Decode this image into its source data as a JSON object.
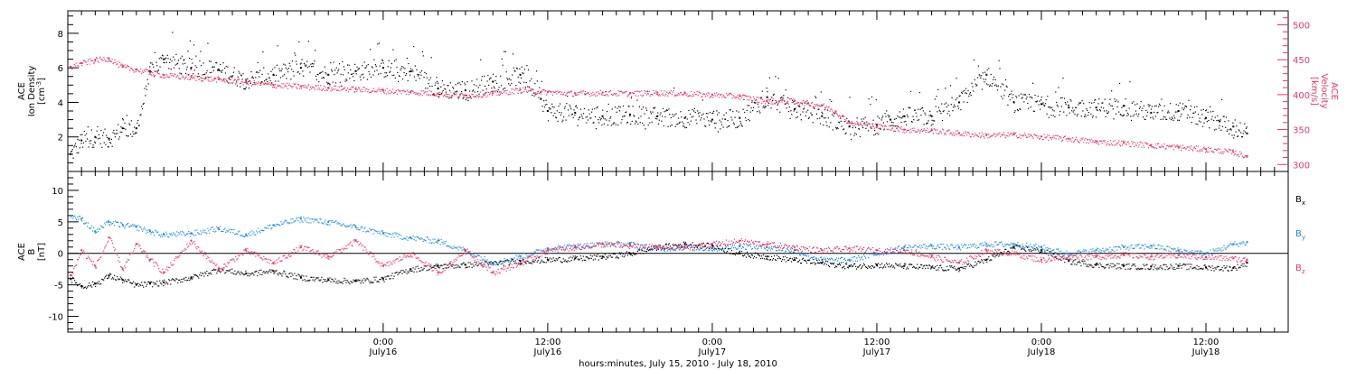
{
  "chart_data": [
    {
      "type": "scatter",
      "title": "",
      "xlabel": "hours:minutes, July 15, 2010 - July 18, 2010",
      "ylabel": "ACE\nIon Density\n[cm⁻³]",
      "ylabel_lines": [
        "ACE",
        "Ion Density",
        "[cm",
        "-3",
        "]"
      ],
      "y2label_lines": [
        "ACE",
        "Velocity",
        "[km/s]"
      ],
      "x_unit": "hours since 2010-07-15 00:00",
      "xlim": [
        1.0,
        90.0
      ],
      "ylim": [
        0,
        9.3
      ],
      "y2lim": [
        290,
        520
      ],
      "yticks": [
        2,
        4,
        6,
        8
      ],
      "y2ticks": [
        300,
        350,
        400,
        450,
        500
      ],
      "series": [
        {
          "name": "Ion Density",
          "color": "#000000",
          "axis": "left",
          "x": [
            1.2,
            2.0,
            3.0,
            4.0,
            5.0,
            6.0,
            7.0,
            8.0,
            10.0,
            12.0,
            14.0,
            16.0,
            18.0,
            20.0,
            22.0,
            24.0,
            26.0,
            28.0,
            30.0,
            32.0,
            34.0,
            35.5,
            36.0,
            38.0,
            40.0,
            42.0,
            44.0,
            46.0,
            48.0,
            50.0,
            52.0,
            54.0,
            56.0,
            58.0,
            60.0,
            61.0,
            62.0,
            64.0,
            66.0,
            68.0,
            70.0,
            72.0,
            74.0,
            76.0,
            78.0,
            80.0,
            82.0,
            84.0,
            85.0,
            86.0,
            87.0
          ],
          "y": [
            1.0,
            1.8,
            2.0,
            1.9,
            2.5,
            2.5,
            5.8,
            6.5,
            6.0,
            5.9,
            5.3,
            5.6,
            6.0,
            5.6,
            5.8,
            6.0,
            5.8,
            4.8,
            4.7,
            5.2,
            5.6,
            4.2,
            3.5,
            3.4,
            3.2,
            3.3,
            3.2,
            3.1,
            3.0,
            3.1,
            4.3,
            3.6,
            3.2,
            2.6,
            2.7,
            3.0,
            3.2,
            3.2,
            4.0,
            5.6,
            4.0,
            3.9,
            3.7,
            3.7,
            3.8,
            3.4,
            3.5,
            3.1,
            2.9,
            2.6,
            2.2
          ]
        },
        {
          "name": "Velocity",
          "color": "#e8375f",
          "axis": "right",
          "x": [
            1.2,
            2.0,
            3.0,
            4.0,
            5.0,
            6.0,
            7.0,
            8.0,
            10.0,
            12.0,
            14.0,
            16.0,
            18.0,
            20.0,
            22.0,
            24.0,
            26.0,
            28.0,
            30.0,
            32.0,
            34.0,
            36.0,
            38.0,
            40.0,
            42.0,
            44.0,
            46.0,
            48.0,
            50.0,
            52.0,
            54.0,
            55.0,
            56.0,
            57.0,
            58.0,
            60.0,
            62.0,
            64.0,
            66.0,
            68.0,
            70.0,
            72.0,
            74.0,
            76.0,
            78.0,
            80.0,
            82.0,
            84.0,
            86.0,
            87.0
          ],
          "y": [
            440,
            445,
            450,
            452,
            440,
            436,
            432,
            428,
            425,
            422,
            418,
            414,
            412,
            410,
            408,
            406,
            404,
            402,
            399,
            402,
            407,
            404,
            402,
            403,
            402,
            403,
            402,
            400,
            398,
            391,
            391,
            388,
            385,
            376,
            360,
            355,
            350,
            349,
            345,
            342,
            343,
            340,
            337,
            333,
            331,
            328,
            325,
            322,
            318,
            312
          ]
        }
      ]
    },
    {
      "type": "scatter",
      "title": "",
      "xlabel": "hours:minutes, July 15, 2010 - July 18, 2010",
      "ylabel": "ACE\nB\n[nT]",
      "ylabel_lines": [
        "ACE",
        "B",
        "[nT]"
      ],
      "x_unit": "hours since 2010-07-15 00:00",
      "xlim": [
        1.0,
        90.0
      ],
      "ylim": [
        -12.5,
        13
      ],
      "yticks": [
        -10,
        -5,
        0,
        5,
        10
      ],
      "zero_line": true,
      "legend": "right",
      "series": [
        {
          "name": "Bx",
          "label_main": "B",
          "label_sub": "x",
          "color": "#000000",
          "x": [
            1.2,
            2.0,
            3.0,
            4.0,
            5.0,
            6.0,
            7.0,
            8.0,
            10.0,
            12.0,
            14.0,
            16.0,
            18.0,
            20.0,
            22.0,
            24.0,
            26.0,
            28.0,
            30.0,
            32.0,
            34.0,
            36.0,
            38.0,
            40.0,
            42.0,
            44.0,
            46.0,
            48.0,
            50.0,
            52.0,
            54.0,
            56.0,
            58.0,
            60.0,
            62.0,
            64.0,
            66.0,
            68.0,
            70.0,
            72.0,
            74.0,
            76.0,
            78.0,
            80.0,
            82.0,
            84.0,
            86.0,
            87.0
          ],
          "y": [
            -4.0,
            -5.2,
            -4.8,
            -3.5,
            -4.2,
            -5.0,
            -4.8,
            -4.6,
            -3.8,
            -2.5,
            -3.2,
            -2.8,
            -3.8,
            -4.2,
            -4.4,
            -4.0,
            -2.5,
            -2.0,
            -1.8,
            -1.5,
            -1.2,
            -1.0,
            -0.8,
            -0.5,
            0.0,
            1.0,
            1.5,
            1.2,
            0.0,
            -0.5,
            -1.0,
            -1.5,
            -2.0,
            -1.8,
            -2.0,
            -2.2,
            -2.4,
            -1.0,
            1.0,
            0.5,
            -1.2,
            -1.8,
            -2.0,
            -2.1,
            -2.0,
            -2.2,
            -2.3,
            -1.5
          ]
        },
        {
          "name": "By",
          "label_main": "B",
          "label_sub": "y",
          "color": "#1e88e5",
          "x": [
            1.2,
            2.0,
            3.0,
            4.0,
            5.0,
            6.0,
            7.0,
            8.0,
            10.0,
            12.0,
            14.0,
            16.0,
            18.0,
            20.0,
            22.0,
            24.0,
            26.0,
            28.0,
            30.0,
            32.0,
            34.0,
            36.0,
            38.0,
            40.0,
            42.0,
            44.0,
            46.0,
            48.0,
            50.0,
            52.0,
            54.0,
            56.0,
            58.0,
            60.0,
            62.0,
            64.0,
            66.0,
            68.0,
            70.0,
            72.0,
            74.0,
            76.0,
            78.0,
            80.0,
            82.0,
            84.0,
            86.0,
            87.0
          ],
          "y": [
            6.0,
            5.5,
            3.5,
            5.0,
            4.5,
            4.2,
            3.5,
            3.0,
            3.2,
            4.0,
            3.0,
            4.5,
            5.5,
            5.0,
            4.2,
            3.2,
            2.5,
            2.0,
            0.5,
            -1.5,
            -0.5,
            0.8,
            1.2,
            1.5,
            1.5,
            0.8,
            1.0,
            0.8,
            1.2,
            1.0,
            0.5,
            -1.0,
            -1.0,
            0.0,
            1.0,
            1.2,
            1.0,
            1.5,
            1.5,
            1.0,
            0.0,
            0.5,
            1.0,
            1.2,
            0.5,
            0.0,
            1.5,
            1.8
          ]
        },
        {
          "name": "Bz",
          "label_main": "B",
          "label_sub": "z",
          "color": "#e8375f",
          "x": [
            1.2,
            2.0,
            3.0,
            4.0,
            5.0,
            6.0,
            7.0,
            8.0,
            10.0,
            12.0,
            14.0,
            16.0,
            18.0,
            20.0,
            22.0,
            24.0,
            26.0,
            28.0,
            30.0,
            32.0,
            34.0,
            36.0,
            38.0,
            40.0,
            42.0,
            44.0,
            46.0,
            48.0,
            50.0,
            52.0,
            54.0,
            56.0,
            58.0,
            60.0,
            62.0,
            64.0,
            66.0,
            68.0,
            70.0,
            72.0,
            74.0,
            76.0,
            78.0,
            80.0,
            82.0,
            84.0,
            86.0,
            87.0
          ],
          "y": [
            -3.5,
            0.5,
            -2.0,
            2.5,
            -2.5,
            1.5,
            -1.0,
            -3.0,
            2.0,
            -2.5,
            0.5,
            -1.5,
            1.0,
            -0.5,
            2.0,
            -2.0,
            0.0,
            -3.0,
            0.5,
            -3.0,
            -1.5,
            0.5,
            1.0,
            1.5,
            1.2,
            1.0,
            1.0,
            1.5,
            2.0,
            1.5,
            1.0,
            0.5,
            0.8,
            0.5,
            0.5,
            -0.5,
            -1.5,
            0.5,
            0.0,
            -1.0,
            -0.5,
            -0.5,
            -0.2,
            -0.5,
            -0.3,
            -0.6,
            -0.8,
            -1.0
          ]
        }
      ]
    }
  ],
  "x_ticks": [
    {
      "time": "0:00",
      "date": "July16",
      "hour": 24
    },
    {
      "time": "12:00",
      "date": "July16",
      "hour": 36
    },
    {
      "time": "0:00",
      "date": "July17",
      "hour": 48
    },
    {
      "time": "12:00",
      "date": "July17",
      "hour": 60
    },
    {
      "time": "0:00",
      "date": "July18",
      "hour": 72
    },
    {
      "time": "12:00",
      "date": "July18",
      "hour": 84
    }
  ],
  "x_minor_step_hours": 1,
  "x_title": "hours:minutes, July 15, 2010 - July 18, 2010"
}
